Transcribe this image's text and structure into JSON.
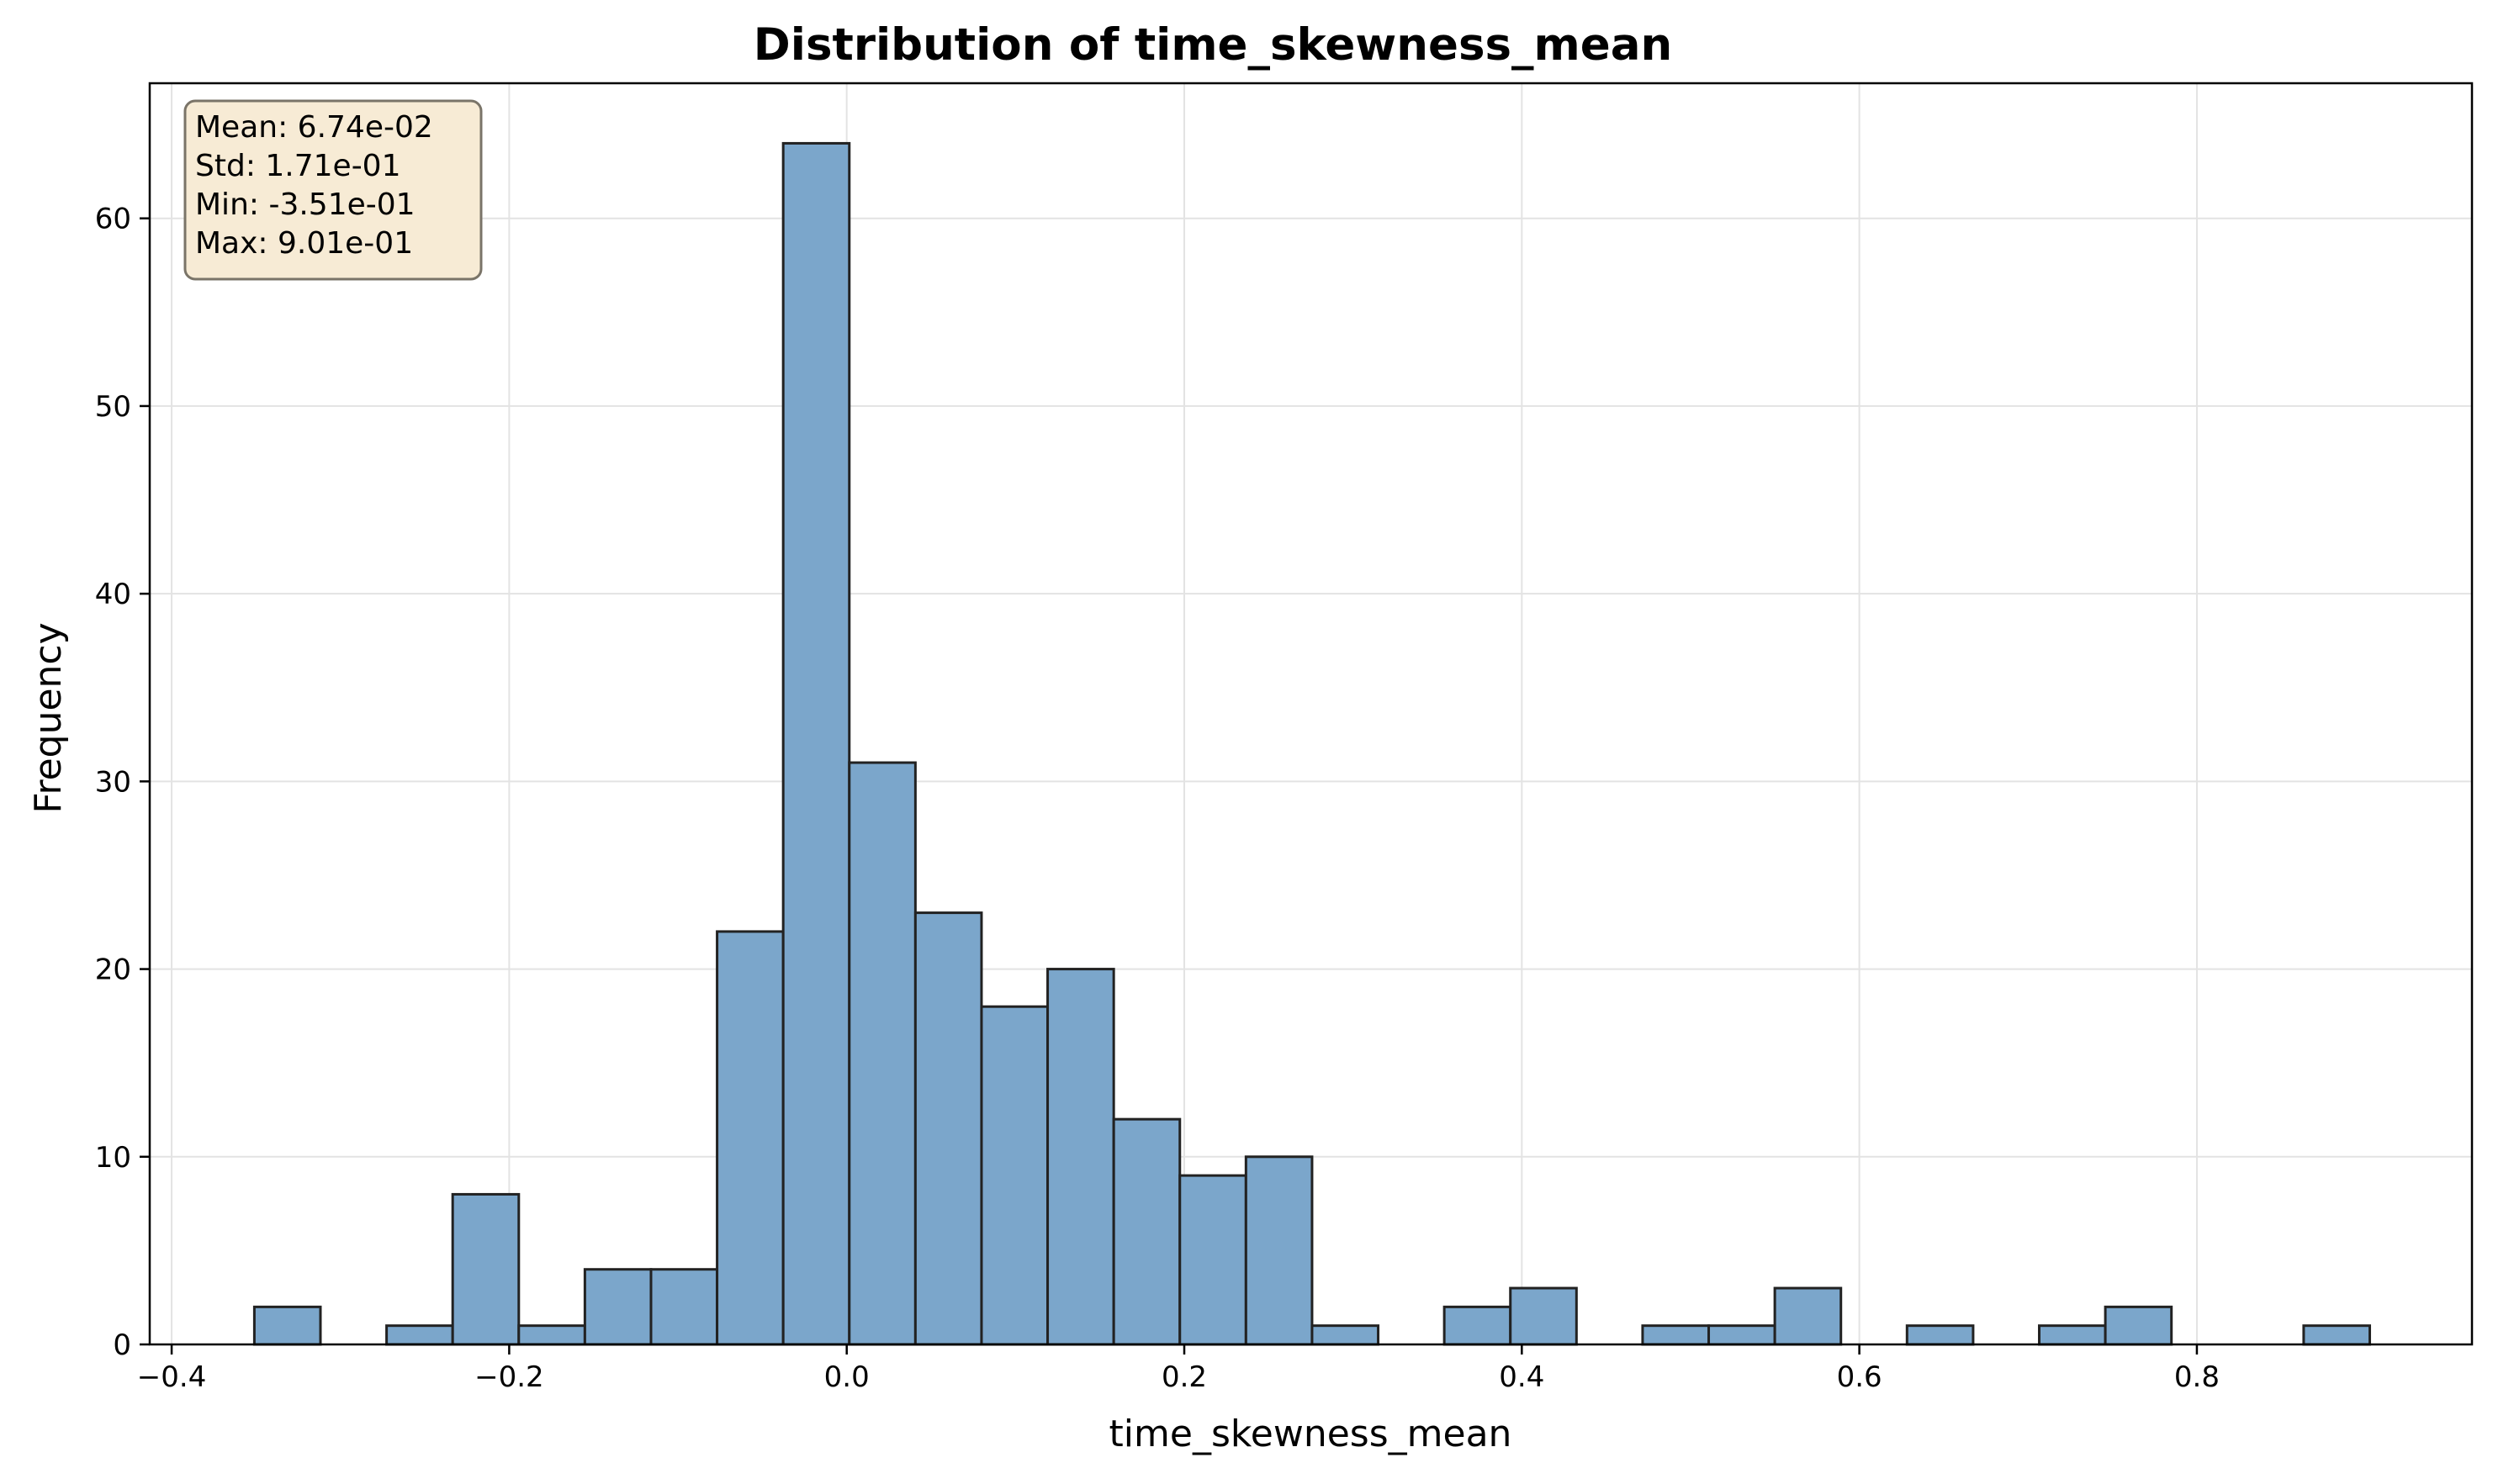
{
  "chart_data": {
    "type": "bar",
    "title": "Distribution of time_skewness_mean",
    "xlabel": "time_skewness_mean",
    "ylabel": "Frequency",
    "xlim": [
      -0.413,
      0.963
    ],
    "ylim": [
      0,
      67.2
    ],
    "x_ticks": [
      -0.4,
      -0.2,
      0.0,
      0.2,
      0.4,
      0.6,
      0.8
    ],
    "x_tick_labels": [
      "−0.4",
      "−0.2",
      "0.0",
      "0.2",
      "0.4",
      "0.6",
      "0.8"
    ],
    "y_ticks": [
      0,
      10,
      20,
      30,
      40,
      50,
      60
    ],
    "y_tick_labels": [
      "0",
      "10",
      "20",
      "30",
      "40",
      "50",
      "60"
    ],
    "grid": true,
    "bin_start": -0.351,
    "bin_width": 0.03917,
    "counts": [
      2,
      0,
      1,
      8,
      1,
      4,
      4,
      22,
      64,
      31,
      23,
      18,
      20,
      12,
      9,
      10,
      1,
      0,
      2,
      3,
      0,
      1,
      1,
      3,
      0,
      1,
      0,
      1,
      2,
      0,
      0,
      1
    ],
    "colors": {
      "bar_fill": "#7ba6cb",
      "bar_edge": "#222222",
      "stats_box_fill": "#f7ebd5",
      "stats_box_edge": "#7a7468",
      "grid": "#e3e3e3"
    },
    "stats_box": {
      "position": "top-left",
      "lines": [
        "Mean: 6.74e-02",
        "Std: 1.71e-01",
        "Min: -3.51e-01",
        "Max: 9.01e-01"
      ]
    }
  }
}
